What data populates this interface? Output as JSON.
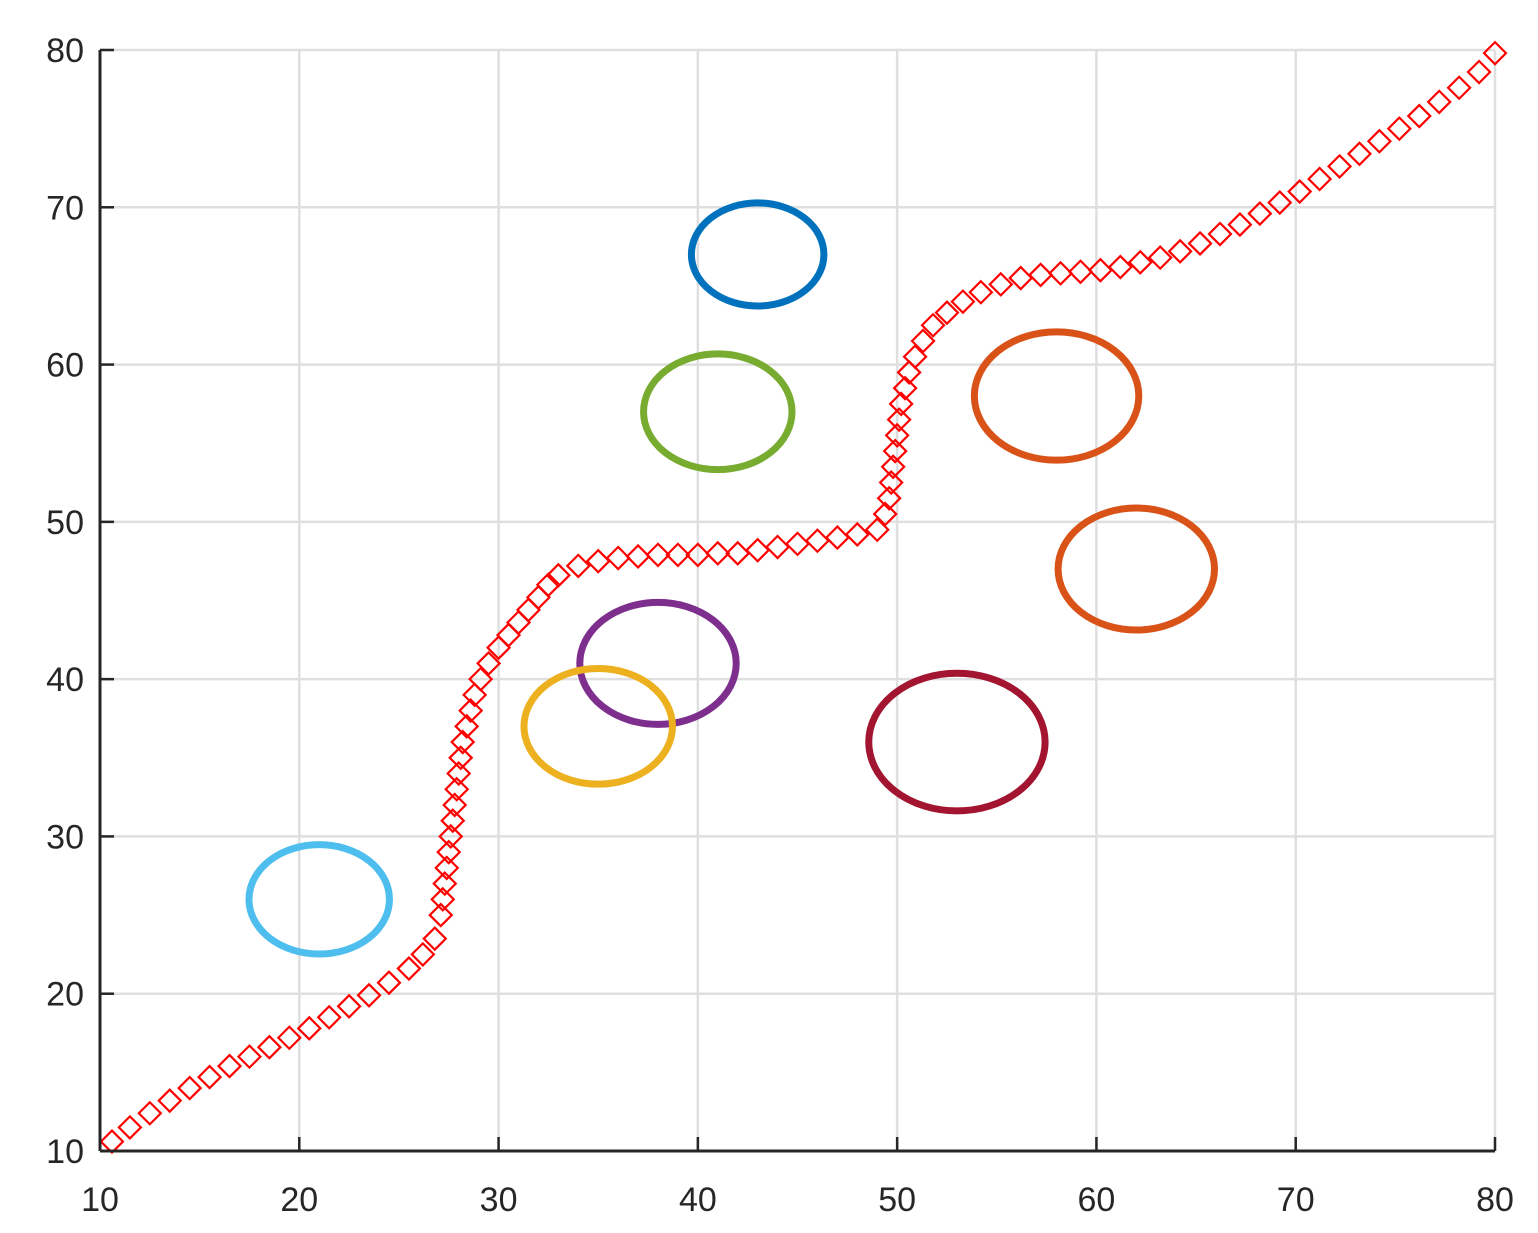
{
  "chart_data": {
    "type": "scatter",
    "title": "",
    "xlabel": "",
    "ylabel": "",
    "xlim": [
      10,
      80
    ],
    "ylim": [
      10,
      80
    ],
    "grid": true,
    "legend": "none",
    "xticks": [
      "10",
      "20",
      "30",
      "40",
      "50",
      "60",
      "70",
      "80"
    ],
    "yticks": [
      "10",
      "20",
      "30",
      "40",
      "50",
      "60",
      "70",
      "80"
    ],
    "circles": [
      {
        "cx": 43,
        "cy": 67,
        "r": 3.5,
        "color": "#0072BD"
      },
      {
        "cx": 41,
        "cy": 57,
        "r": 3.9,
        "color": "#77AC30"
      },
      {
        "cx": 58,
        "cy": 58,
        "r": 4.3,
        "color": "#D95319"
      },
      {
        "cx": 62,
        "cy": 47,
        "r": 4.1,
        "color": "#D95319"
      },
      {
        "cx": 38,
        "cy": 41,
        "r": 4.1,
        "color": "#7E2F8E"
      },
      {
        "cx": 35,
        "cy": 37,
        "r": 3.9,
        "color": "#EDB120"
      },
      {
        "cx": 53,
        "cy": 36,
        "r": 4.6,
        "color": "#A2142F"
      },
      {
        "cx": 21,
        "cy": 26,
        "r": 3.7,
        "color": "#4DBEEE"
      }
    ],
    "path": {
      "marker": "diamond",
      "color": "#FF0000",
      "points": [
        [
          10.6,
          10.6
        ],
        [
          11.5,
          11.5
        ],
        [
          12.5,
          12.4
        ],
        [
          13.5,
          13.2
        ],
        [
          14.5,
          14
        ],
        [
          15.5,
          14.7
        ],
        [
          16.5,
          15.4
        ],
        [
          17.5,
          16
        ],
        [
          18.5,
          16.6
        ],
        [
          19.5,
          17.2
        ],
        [
          20.5,
          17.8
        ],
        [
          21.5,
          18.5
        ],
        [
          22.5,
          19.2
        ],
        [
          23.5,
          19.9
        ],
        [
          24.5,
          20.7
        ],
        [
          25.5,
          21.6
        ],
        [
          26.2,
          22.5
        ],
        [
          26.8,
          23.5
        ],
        [
          27.1,
          25
        ],
        [
          27.2,
          26
        ],
        [
          27.3,
          27
        ],
        [
          27.4,
          28
        ],
        [
          27.5,
          29
        ],
        [
          27.6,
          30
        ],
        [
          27.7,
          31
        ],
        [
          27.8,
          32
        ],
        [
          27.9,
          33
        ],
        [
          28,
          34
        ],
        [
          28.1,
          35
        ],
        [
          28.2,
          36
        ],
        [
          28.4,
          37
        ],
        [
          28.6,
          38
        ],
        [
          28.8,
          39
        ],
        [
          29.1,
          40
        ],
        [
          29.5,
          41
        ],
        [
          30,
          42
        ],
        [
          30.5,
          42.8
        ],
        [
          31,
          43.6
        ],
        [
          31.5,
          44.4
        ],
        [
          32,
          45.2
        ],
        [
          32.5,
          46
        ],
        [
          33,
          46.6
        ],
        [
          34,
          47.2
        ],
        [
          35,
          47.5
        ],
        [
          36,
          47.7
        ],
        [
          37,
          47.8
        ],
        [
          38,
          47.9
        ],
        [
          39,
          47.9
        ],
        [
          40,
          47.9
        ],
        [
          41,
          48
        ],
        [
          42,
          48
        ],
        [
          43,
          48.2
        ],
        [
          44,
          48.4
        ],
        [
          45,
          48.6
        ],
        [
          46,
          48.8
        ],
        [
          47,
          49
        ],
        [
          48,
          49.2
        ],
        [
          49,
          49.5
        ],
        [
          49.4,
          50.5
        ],
        [
          49.6,
          51.5
        ],
        [
          49.7,
          52.5
        ],
        [
          49.8,
          53.5
        ],
        [
          49.9,
          54.5
        ],
        [
          50,
          55.5
        ],
        [
          50.1,
          56.5
        ],
        [
          50.2,
          57.5
        ],
        [
          50.4,
          58.5
        ],
        [
          50.6,
          59.5
        ],
        [
          50.9,
          60.5
        ],
        [
          51.3,
          61.5
        ],
        [
          51.8,
          62.5
        ],
        [
          52.5,
          63.3
        ],
        [
          53.3,
          64
        ],
        [
          54.2,
          64.6
        ],
        [
          55.2,
          65.1
        ],
        [
          56.2,
          65.5
        ],
        [
          57.2,
          65.7
        ],
        [
          58.2,
          65.8
        ],
        [
          59.2,
          65.9
        ],
        [
          60.2,
          66
        ],
        [
          61.2,
          66.2
        ],
        [
          62.2,
          66.5
        ],
        [
          63.2,
          66.8
        ],
        [
          64.2,
          67.2
        ],
        [
          65.2,
          67.7
        ],
        [
          66.2,
          68.3
        ],
        [
          67.2,
          68.9
        ],
        [
          68.2,
          69.6
        ],
        [
          69.2,
          70.3
        ],
        [
          70.2,
          71
        ],
        [
          71.2,
          71.8
        ],
        [
          72.2,
          72.6
        ],
        [
          73.2,
          73.4
        ],
        [
          74.2,
          74.2
        ],
        [
          75.2,
          75
        ],
        [
          76.2,
          75.8
        ],
        [
          77.2,
          76.7
        ],
        [
          78.2,
          77.6
        ],
        [
          79.2,
          78.6
        ],
        [
          80,
          79.8
        ]
      ]
    }
  }
}
